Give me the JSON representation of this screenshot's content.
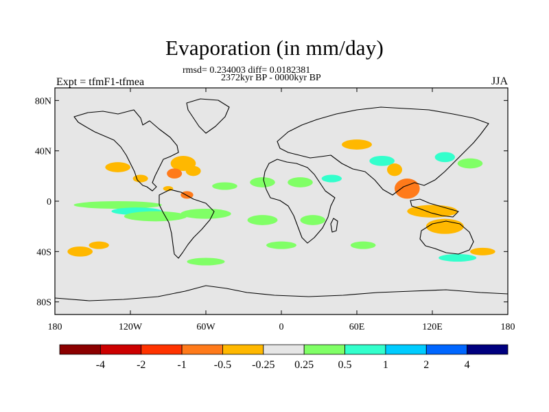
{
  "header": {
    "title": "Evaporation (in mm/day)",
    "stats_line": "rmsd= 0.234003 diff= 0.0182381",
    "period_line": "2372kyr BP - 0000kyr BP",
    "experiment_label": "Expt = tfmF1-tfmea",
    "season_label": "JJA"
  },
  "map": {
    "projection": "cylindrical-equidistant",
    "lon_range": [
      -180,
      180
    ],
    "lat_range": [
      -90,
      90
    ],
    "background_color": "#e6e6e6",
    "lat_tick_labels": [
      {
        "lat": 80,
        "label": "80N"
      },
      {
        "lat": 40,
        "label": "40N"
      },
      {
        "lat": 0,
        "label": "0"
      },
      {
        "lat": -40,
        "label": "40S"
      },
      {
        "lat": -80,
        "label": "80S"
      }
    ],
    "lon_tick_labels": [
      {
        "lon": -180,
        "label": "180"
      },
      {
        "lon": -120,
        "label": "120W"
      },
      {
        "lon": -60,
        "label": "60W"
      },
      {
        "lon": 0,
        "label": "0"
      },
      {
        "lon": 60,
        "label": "60E"
      },
      {
        "lon": 120,
        "label": "120E"
      },
      {
        "lon": 180,
        "label": "180"
      }
    ]
  },
  "colorbar": {
    "colors": [
      "#8b0000",
      "#cc0000",
      "#ff3300",
      "#ff7a1a",
      "#ffb800",
      "#e6e6e6",
      "#80ff66",
      "#33ffcc",
      "#00ccff",
      "#0066ff",
      "#00007f"
    ],
    "labels": [
      "-4",
      "-2",
      "-1",
      "-0.5",
      "-0.25",
      "0.25",
      "0.5",
      "1",
      "2",
      "4"
    ]
  },
  "chart_data": {
    "type": "heatmap",
    "title": "Evaporation (in mm/day)",
    "variable": "Evaporation",
    "units": "mm/day",
    "season": "JJA",
    "experiment": "tfmF1-tfmea",
    "period": "2372kyr BP - 0000kyr BP",
    "rmsd": 0.234003,
    "diff": 0.0182381,
    "contour_levels": [
      -4,
      -2,
      -1,
      -0.5,
      -0.25,
      0.25,
      0.5,
      1,
      2,
      4
    ],
    "regions": [
      {
        "lon": -130,
        "lat": 27,
        "rlon": 10,
        "rlat": 4,
        "value": -0.3
      },
      {
        "lon": -112,
        "lat": 18,
        "rlon": 6,
        "rlat": 3,
        "value": -0.3
      },
      {
        "lon": -78,
        "lat": 30,
        "rlon": 10,
        "rlat": 6,
        "value": -0.3
      },
      {
        "lon": -85,
        "lat": 22,
        "rlon": 6,
        "rlat": 4,
        "value": -0.6
      },
      {
        "lon": -70,
        "lat": 24,
        "rlon": 6,
        "rlat": 4,
        "value": -0.3
      },
      {
        "lon": -75,
        "lat": 5,
        "rlon": 5,
        "rlat": 3,
        "value": -0.6
      },
      {
        "lon": -90,
        "lat": 10,
        "rlon": 4,
        "rlat": 2,
        "value": -0.3
      },
      {
        "lon": -130,
        "lat": -3,
        "rlon": 35,
        "rlat": 3,
        "value": 0.3
      },
      {
        "lon": -115,
        "lat": -8,
        "rlon": 20,
        "rlat": 3,
        "value": 0.6
      },
      {
        "lon": -100,
        "lat": -12,
        "rlon": 25,
        "rlat": 4,
        "value": 0.3
      },
      {
        "lon": -60,
        "lat": -10,
        "rlon": 20,
        "rlat": 4,
        "value": 0.3
      },
      {
        "lon": -15,
        "lat": -15,
        "rlon": 12,
        "rlat": 4,
        "value": 0.3
      },
      {
        "lon": 25,
        "lat": -15,
        "rlon": 10,
        "rlat": 4,
        "value": 0.3
      },
      {
        "lon": -15,
        "lat": 15,
        "rlon": 10,
        "rlat": 4,
        "value": 0.3
      },
      {
        "lon": 15,
        "lat": 15,
        "rlon": 10,
        "rlat": 4,
        "value": 0.3
      },
      {
        "lon": 40,
        "lat": 18,
        "rlon": 8,
        "rlat": 3,
        "value": 0.6
      },
      {
        "lon": 80,
        "lat": 32,
        "rlon": 10,
        "rlat": 4,
        "value": 0.6
      },
      {
        "lon": 60,
        "lat": 45,
        "rlon": 12,
        "rlat": 4,
        "value": -0.3
      },
      {
        "lon": 100,
        "lat": 10,
        "rlon": 10,
        "rlat": 8,
        "value": -0.6
      },
      {
        "lon": 90,
        "lat": 25,
        "rlon": 6,
        "rlat": 5,
        "value": -0.3
      },
      {
        "lon": 130,
        "lat": 35,
        "rlon": 8,
        "rlat": 4,
        "value": 0.6
      },
      {
        "lon": 150,
        "lat": 30,
        "rlon": 10,
        "rlat": 4,
        "value": 0.3
      },
      {
        "lon": 120,
        "lat": -8,
        "rlon": 20,
        "rlat": 5,
        "value": -0.3
      },
      {
        "lon": 130,
        "lat": -20,
        "rlon": 15,
        "rlat": 6,
        "value": -0.3
      },
      {
        "lon": 140,
        "lat": -45,
        "rlon": 15,
        "rlat": 3,
        "value": 0.6
      },
      {
        "lon": 160,
        "lat": -40,
        "rlon": 10,
        "rlat": 3,
        "value": -0.3
      },
      {
        "lon": -160,
        "lat": -40,
        "rlon": 10,
        "rlat": 4,
        "value": -0.3
      },
      {
        "lon": -145,
        "lat": -35,
        "rlon": 8,
        "rlat": 3,
        "value": -0.3
      },
      {
        "lon": -60,
        "lat": -48,
        "rlon": 15,
        "rlat": 3,
        "value": 0.3
      },
      {
        "lon": -45,
        "lat": 12,
        "rlon": 10,
        "rlat": 3,
        "value": 0.3
      },
      {
        "lon": 0,
        "lat": -35,
        "rlon": 12,
        "rlat": 3,
        "value": 0.3
      },
      {
        "lon": 65,
        "lat": -35,
        "rlon": 10,
        "rlat": 3,
        "value": 0.3
      }
    ]
  }
}
